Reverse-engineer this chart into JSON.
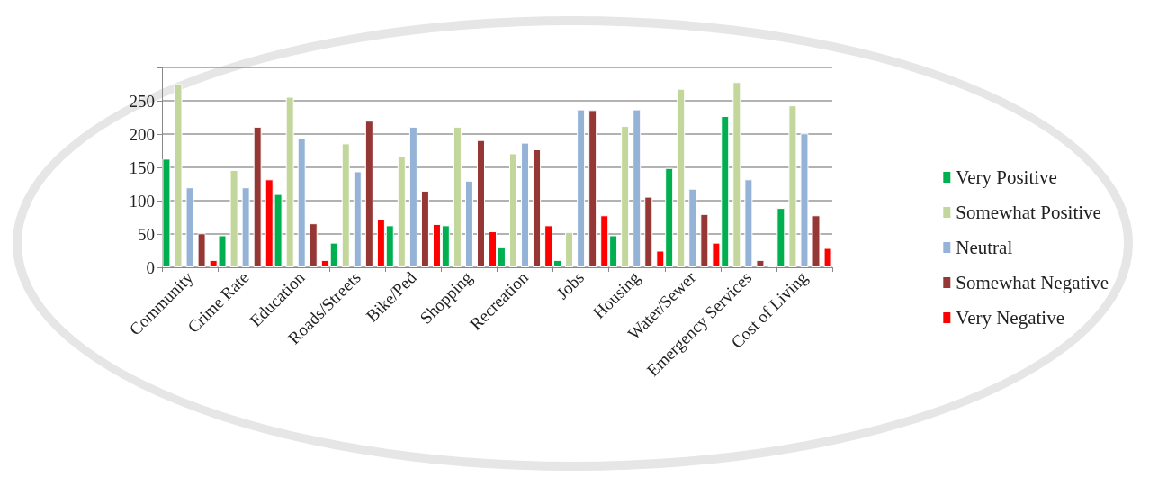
{
  "chart_data": {
    "type": "bar",
    "categories": [
      "Community",
      "Crime Rate",
      "Education",
      "Roads/Streets",
      "Bike/Ped",
      "Shopping",
      "Recreation",
      "Jobs",
      "Housing",
      "Water/Sewer",
      "Emergency Services",
      "Cost of Living"
    ],
    "series": [
      {
        "name": "Very Positive",
        "color": "#00b050",
        "values": [
          163,
          48,
          110,
          37,
          63,
          63,
          30,
          11,
          48,
          149,
          227,
          89
        ]
      },
      {
        "name": "Somewhat Positive",
        "color": "#c3d69b",
        "values": [
          275,
          146,
          256,
          186,
          167,
          211,
          171,
          53,
          212,
          268,
          278,
          243
        ]
      },
      {
        "name": "Neutral",
        "color": "#95b3d7",
        "values": [
          120,
          120,
          194,
          144,
          211,
          130,
          187,
          237,
          237,
          118,
          132,
          201
        ]
      },
      {
        "name": "Somewhat Negative",
        "color": "#953735",
        "values": [
          51,
          211,
          66,
          220,
          115,
          191,
          177,
          236,
          106,
          80,
          11,
          78
        ]
      },
      {
        "name": "Very Negative",
        "color": "#ff0000",
        "values": [
          11,
          132,
          11,
          72,
          65,
          54,
          63,
          78,
          25,
          37,
          4,
          29
        ]
      }
    ],
    "ylim": [
      0,
      300
    ],
    "yticks": [
      0,
      50,
      100,
      150,
      200,
      250,
      {
        "value": 300,
        "label": null
      }
    ],
    "grid": "y",
    "legend": "right"
  }
}
